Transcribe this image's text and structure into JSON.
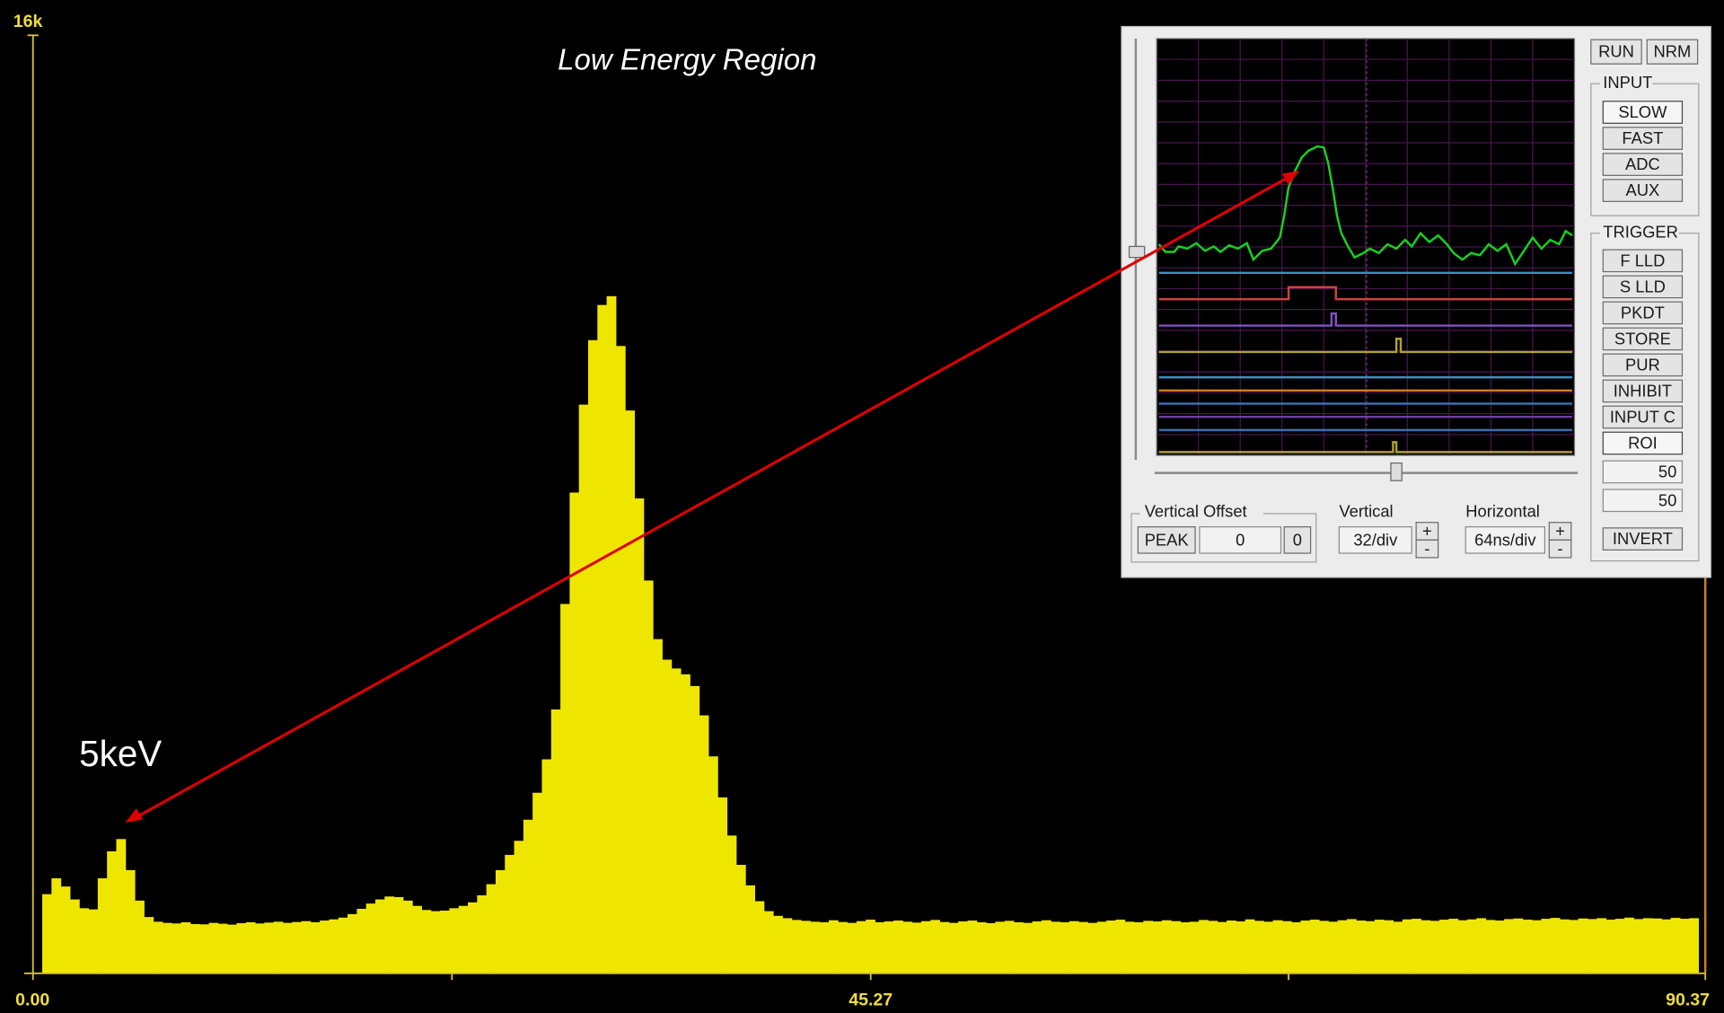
{
  "chart_data": {
    "type": "histogram",
    "title": "Low Energy Region",
    "annotation": "5keV",
    "color": "#efe600",
    "xlim": [
      0,
      90.37
    ],
    "ylim": [
      0,
      16000
    ],
    "xticks": [
      {
        "value": 0,
        "label": "0.00"
      },
      {
        "value": 45.27,
        "label": "45.27"
      },
      {
        "value": 90.37,
        "label": "90.37"
      }
    ],
    "minor_xticks": [
      22.64,
      67.85
    ],
    "yticks": [
      {
        "value": 16000,
        "label": "16k"
      }
    ],
    "bins": [
      0,
      0.5,
      1,
      1.5,
      2,
      2.5,
      3,
      3.5,
      4,
      4.5,
      5,
      5.5,
      6,
      6.5,
      7,
      7.5,
      8,
      8.5,
      9,
      9.5,
      10,
      10.5,
      11,
      11.5,
      12,
      12.5,
      13,
      13.5,
      14,
      14.5,
      15,
      15.5,
      16,
      16.5,
      17,
      17.5,
      18,
      18.5,
      19,
      19.5,
      20,
      20.5,
      21,
      21.5,
      22,
      22.5,
      23,
      23.5,
      24,
      24.5,
      25,
      25.5,
      26,
      26.5,
      27,
      27.5,
      28,
      28.5,
      29,
      29.5,
      30,
      30.5,
      31,
      31.5,
      32,
      32.5,
      33,
      33.5,
      34,
      34.5,
      35,
      35.5,
      36,
      36.5,
      37,
      37.5,
      38,
      38.5,
      39,
      39.5,
      40,
      40.5,
      41,
      41.5,
      42,
      42.5,
      43,
      43.5,
      44,
      44.5,
      45,
      45.5,
      46,
      46.5,
      47,
      47.5,
      48,
      48.5,
      49,
      49.5,
      50,
      50.5,
      51,
      51.5,
      52,
      52.5,
      53,
      53.5,
      54,
      54.5,
      55,
      55.5,
      56,
      56.5,
      57,
      57.5,
      58,
      58.5,
      59,
      59.5,
      60,
      60.5,
      61,
      61.5,
      62,
      62.5,
      63,
      63.5,
      64,
      64.5,
      65,
      65.5,
      66,
      66.5,
      67,
      67.5,
      68,
      68.5,
      69,
      69.5,
      70,
      70.5,
      71,
      71.5,
      72,
      72.5,
      73,
      73.5,
      74,
      74.5,
      75,
      75.5,
      76,
      76.5,
      77,
      77.5,
      78,
      78.5,
      79,
      79.5,
      80,
      80.5,
      81,
      81.5,
      82,
      82.5,
      83,
      83.5,
      84,
      84.5,
      85,
      85.5,
      86,
      86.5,
      87,
      87.5,
      88,
      88.5,
      89,
      89.5,
      90
    ],
    "values": [
      0,
      1350,
      1620,
      1480,
      1260,
      1110,
      1090,
      1620,
      2080,
      2290,
      1760,
      1240,
      960,
      880,
      860,
      850,
      870,
      840,
      835,
      860,
      845,
      830,
      855,
      870,
      850,
      865,
      880,
      860,
      875,
      890,
      870,
      900,
      920,
      950,
      1010,
      1100,
      1190,
      1260,
      1310,
      1300,
      1240,
      1150,
      1080,
      1060,
      1070,
      1110,
      1150,
      1210,
      1330,
      1520,
      1760,
      2020,
      2260,
      2620,
      3080,
      3650,
      4500,
      6300,
      8200,
      9700,
      10800,
      11400,
      11550,
      10700,
      9600,
      8100,
      6700,
      5700,
      5350,
      5200,
      5100,
      4900,
      4400,
      3700,
      3000,
      2350,
      1850,
      1500,
      1230,
      1060,
      980,
      940,
      910,
      895,
      880,
      870,
      905,
      875,
      860,
      890,
      915,
      870,
      885,
      900,
      880,
      865,
      890,
      910,
      875,
      860,
      885,
      900,
      870,
      855,
      880,
      895,
      870,
      860,
      885,
      905,
      880,
      870,
      890,
      875,
      860,
      880,
      900,
      915,
      880,
      870,
      895,
      885,
      905,
      890,
      870,
      880,
      910,
      895,
      875,
      900,
      885,
      920,
      895,
      880,
      905,
      890,
      870,
      900,
      915,
      895,
      880,
      905,
      925,
      900,
      890,
      915,
      905,
      880,
      920,
      930,
      905,
      895,
      915,
      930,
      905,
      920,
      940,
      910,
      900,
      925,
      935,
      915,
      905,
      930,
      945,
      920,
      910,
      935,
      925,
      940,
      915,
      930,
      950,
      925,
      940,
      935,
      920,
      945,
      930,
      940
    ]
  },
  "scope_panel": {
    "top_buttons": [
      "RUN",
      "NRM"
    ],
    "input": {
      "title": "INPUT",
      "buttons": [
        "SLOW",
        "FAST",
        "ADC",
        "AUX"
      ]
    },
    "trigger": {
      "title": "TRIGGER",
      "buttons": [
        "F LLD",
        "S LLD",
        "PKDT",
        "STORE",
        "PUR",
        "INHIBIT",
        "INPUT C",
        "ROI"
      ],
      "fields": [
        "50",
        "50"
      ],
      "invert": "INVERT"
    },
    "vertical_offset": {
      "title": "Vertical Offset",
      "button": "PEAK",
      "field": "0",
      "reset": "0"
    },
    "vertical": {
      "title": "Vertical",
      "field": "32/div",
      "plus": "+",
      "minus": "-"
    },
    "horizontal": {
      "title": "Horizontal",
      "field": "64ns/div",
      "plus": "+",
      "minus": "-"
    }
  }
}
